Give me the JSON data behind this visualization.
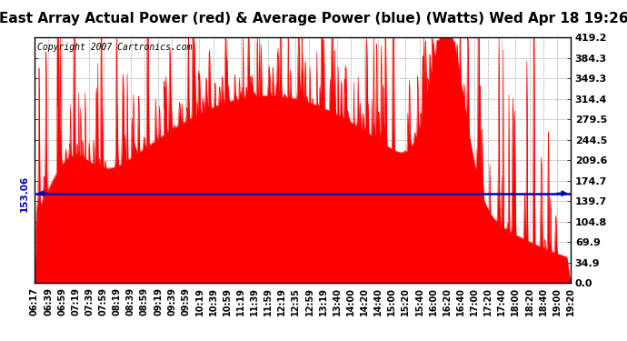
{
  "title": "East Array Actual Power (red) & Average Power (blue) (Watts) Wed Apr 18 19:26",
  "copyright": "Copyright 2007 Cartronics.com",
  "avg_power": 153.06,
  "ymax": 419.2,
  "ymin": 0.0,
  "yticks": [
    0.0,
    34.9,
    69.9,
    104.8,
    139.7,
    174.7,
    209.6,
    244.5,
    279.5,
    314.4,
    349.3,
    384.3,
    419.2
  ],
  "xtick_labels": [
    "06:17",
    "06:39",
    "06:59",
    "07:19",
    "07:39",
    "07:59",
    "08:19",
    "08:39",
    "08:59",
    "09:19",
    "09:39",
    "09:59",
    "10:19",
    "10:39",
    "10:59",
    "11:19",
    "11:39",
    "11:59",
    "12:19",
    "12:35",
    "12:59",
    "13:19",
    "13:40",
    "14:00",
    "14:20",
    "14:40",
    "15:00",
    "15:20",
    "15:40",
    "16:00",
    "16:20",
    "16:40",
    "17:00",
    "17:20",
    "17:40",
    "18:00",
    "18:20",
    "18:40",
    "19:00",
    "19:20"
  ],
  "red_color": "#FF0000",
  "blue_color": "#0000BB",
  "bg_color": "#FFFFFF",
  "grid_color": "#AAAAAA",
  "avg_label": "153.06",
  "title_fontsize": 11,
  "copyright_fontsize": 7,
  "ytick_fontsize": 8,
  "xtick_fontsize": 7
}
